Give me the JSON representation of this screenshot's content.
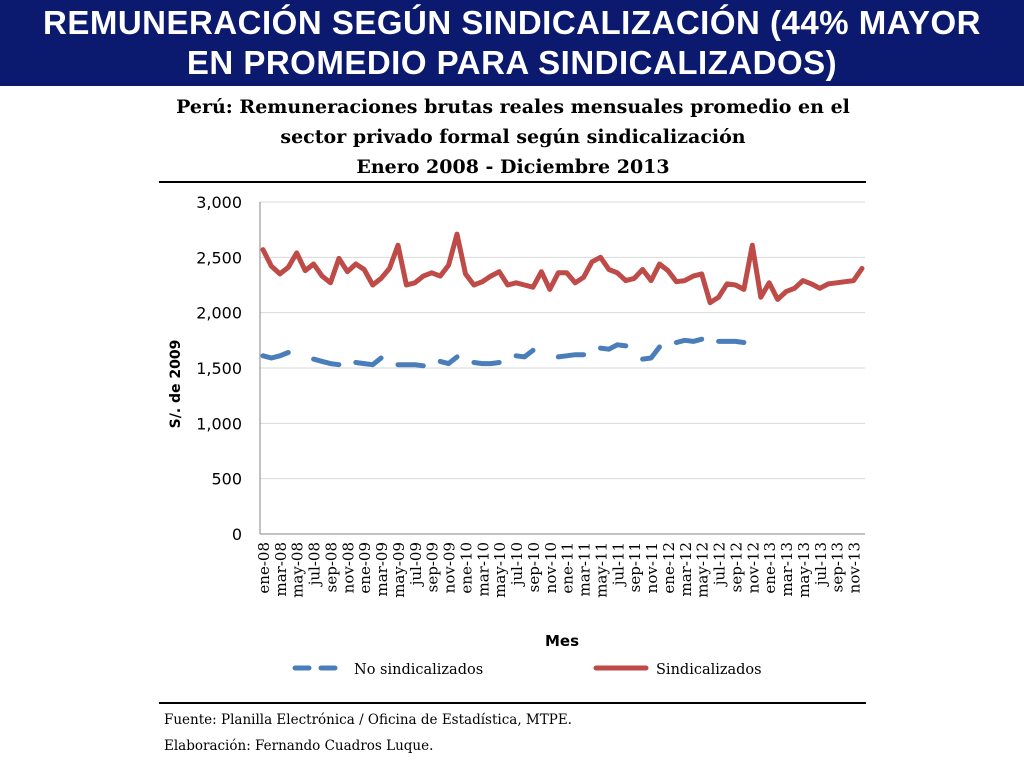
{
  "banner": {
    "line1": "REMUNERACIÓN SEGÚN SINDICALIZACIÓN (44% MAYOR",
    "line2": "EN PROMEDIO PARA SINDICALIZADOS)"
  },
  "footer": {
    "source": "Fuente:  Planilla Electrónica / Oficina de Estadística, MTPE.",
    "credit": "Elaboración: Fernando Cuadros Luque."
  },
  "chart_data": {
    "type": "line",
    "title": "Perú: Remuneraciones brutas reales mensuales promedio en el sector privado formal según sindicalización",
    "title_lines": [
      "Perú: Remuneraciones brutas reales mensuales promedio en el",
      "sector privado formal según sindicalización",
      "Enero 2008 - Diciembre 2013"
    ],
    "xlabel": "Mes",
    "ylabel": "S/. de 2009",
    "ylim": [
      0,
      3000
    ],
    "yticks": [
      0,
      500,
      1000,
      1500,
      2000,
      2500,
      3000
    ],
    "ytick_labels": [
      "0",
      "500",
      "1,000",
      "1,500",
      "2,000",
      "2,500",
      "3,000"
    ],
    "grid": true,
    "legend_position": "bottom",
    "x_tick_labels": [
      "ene-08",
      "mar-08",
      "may-08",
      "jul-08",
      "sep-08",
      "nov-08",
      "ene-09",
      "mar-09",
      "may-09",
      "jul-09",
      "sep-09",
      "nov-09",
      "ene-10",
      "mar-10",
      "may-10",
      "jul-10",
      "sep-10",
      "nov-10",
      "ene-11",
      "mar-11",
      "may-11",
      "jul-11",
      "sep-11",
      "nov-11",
      "ene-12",
      "mar-12",
      "may-12",
      "jul-12",
      "sep-12",
      "nov-12",
      "ene-13",
      "mar-13",
      "may-13",
      "jul-13",
      "sep-13",
      "nov-13"
    ],
    "series": [
      {
        "name": "No sindicalizados",
        "color": "#4a7ebb",
        "style": "dashed",
        "values": [
          1610,
          1590,
          1610,
          1640,
          null,
          null,
          1580,
          1560,
          1540,
          1530,
          null,
          1550,
          1540,
          1530,
          1590,
          null,
          1530,
          1530,
          1530,
          1520,
          null,
          1560,
          1540,
          1600,
          null,
          1550,
          1540,
          1540,
          1550,
          null,
          1610,
          1600,
          1660,
          null,
          null,
          1600,
          1610,
          1620,
          1620,
          null,
          1680,
          1670,
          1710,
          1700,
          null,
          1580,
          1590,
          1690,
          null,
          1730,
          1750,
          1740,
          1760,
          null,
          1740,
          1740,
          1740,
          1730,
          null,
          null,
          null,
          null
        ],
        "note": "values after index 57 not shown"
      },
      {
        "name": "Sindicalizados",
        "color": "#be4b48",
        "style": "solid",
        "values": [
          2570,
          2420,
          2350,
          2410,
          2540,
          2380,
          2440,
          2330,
          2270,
          2490,
          2370,
          2440,
          2390,
          2250,
          2310,
          2400,
          2610,
          2250,
          2270,
          2330,
          2360,
          2330,
          2430,
          2710,
          2350,
          2250,
          2280,
          2330,
          2370,
          2250,
          2270,
          2250,
          2230,
          2370,
          2210,
          2360,
          2360,
          2270,
          2320,
          2460,
          2500,
          2390,
          2360,
          2290,
          2310,
          2390,
          2290,
          2440,
          2380,
          2280,
          2290,
          2330,
          2350,
          2090,
          2140,
          2260,
          2250,
          2210,
          2610,
          2140,
          2270,
          2120,
          2190,
          2220,
          2290,
          2260,
          2220,
          2260,
          2270,
          2280,
          2290,
          2400
        ]
      }
    ]
  }
}
